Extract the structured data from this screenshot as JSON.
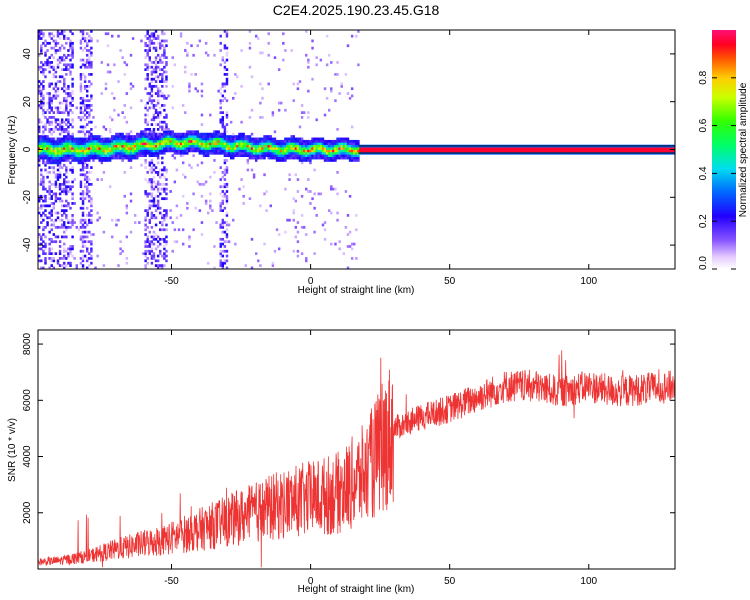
{
  "title": "C2E4.2025.190.23.45.G18",
  "colors": {
    "snr_line": "#ee3333",
    "band_edge": "#000000"
  },
  "chart_data": [
    {
      "type": "heatmap",
      "xlabel": "Height of straight line (km)",
      "ylabel": "Frequency (Hz)",
      "xlim": [
        -98,
        131
      ],
      "ylim": [
        -50,
        50
      ],
      "xticks": [
        -50,
        0,
        50,
        100
      ],
      "xtick_labels": [
        "-50",
        "0",
        "50",
        "100"
      ],
      "yticks": [
        -40,
        -20,
        0,
        20,
        40
      ],
      "ytick_labels": [
        "-40",
        "-20",
        "0",
        "20",
        "40"
      ],
      "colorbar": {
        "label": "Normalized spectral amplitude",
        "range": [
          0,
          1
        ],
        "ticks": [
          0.0,
          0.2,
          0.4,
          0.6,
          0.8
        ],
        "tick_labels": [
          "0.0",
          "0.2",
          "0.4",
          "0.6",
          "0.8"
        ],
        "colormap": "rainbow-white-to-magenta"
      },
      "features": {
        "dominant_frequency_hz": 0,
        "clean_band_start_km": 17,
        "band_halfwidth_hz": 1.5,
        "scatter_strips_km": [
          [
            -98,
            -86
          ],
          [
            -83,
            -79
          ],
          [
            -60,
            -52
          ],
          [
            -33,
            -30
          ]
        ],
        "hump_peak_km": -45,
        "hump_peak_hz": 3
      }
    },
    {
      "type": "line",
      "xlabel": "Height of straight line (km)",
      "ylabel": "SNR (10 * v/v)",
      "xlim": [
        -98,
        131
      ],
      "ylim": [
        0,
        8500
      ],
      "xticks": [
        -50,
        0,
        50,
        100
      ],
      "xtick_labels": [
        "-50",
        "0",
        "50",
        "100"
      ],
      "yticks": [
        2000,
        4000,
        6000,
        8000
      ],
      "ytick_labels": [
        "2000",
        "4000",
        "6000",
        "8000"
      ],
      "series": [
        {
          "x": [
            -98,
            -90,
            -80,
            -70,
            -60,
            -50,
            -40,
            -30,
            -20,
            -10,
            0,
            10,
            20,
            25,
            30,
            40,
            50,
            60,
            70,
            80,
            90,
            100,
            110,
            120,
            131
          ],
          "y": [
            250,
            300,
            450,
            700,
            900,
            1100,
            1400,
            1700,
            2000,
            2300,
            2500,
            2700,
            3400,
            4200,
            5000,
            5400,
            5700,
            6100,
            6500,
            6500,
            6300,
            6500,
            6300,
            6400,
            6500
          ]
        }
      ]
    }
  ]
}
